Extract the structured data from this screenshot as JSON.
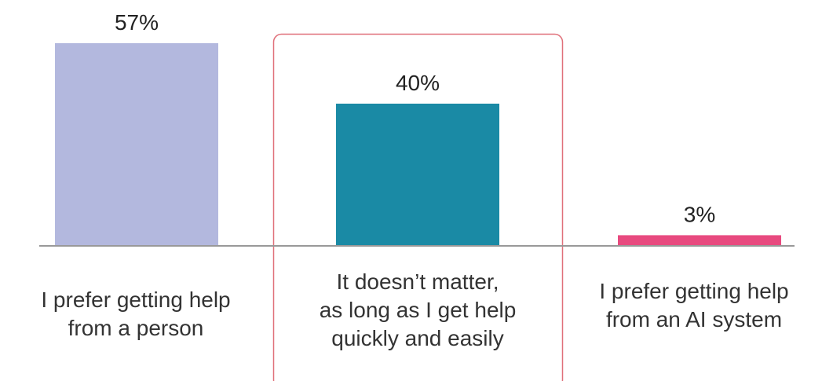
{
  "chart_data": {
    "type": "bar",
    "categories": [
      [
        "I prefer getting help",
        "from a person"
      ],
      [
        "It doesn’t matter,",
        "as long as I get help",
        "quickly and easily"
      ],
      [
        "I prefer getting help",
        "from an AI system"
      ]
    ],
    "values": [
      57,
      40,
      3
    ],
    "value_labels": [
      "57%",
      "40%",
      "3%"
    ],
    "colors": [
      "#b3b8de",
      "#1a8aa5",
      "#e84a7f"
    ],
    "highlight_index": 1,
    "highlight_color": "#e0707a",
    "axis_color": "#999999",
    "ylim": [
      0,
      57
    ],
    "grid": false,
    "legend": "none"
  }
}
